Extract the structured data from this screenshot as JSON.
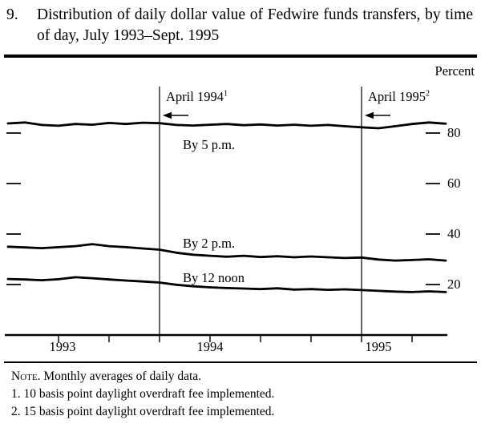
{
  "title": {
    "number": "9.",
    "text": "Distribution of daily dollar value of Fedwire funds transfers, by time of day, July 1993–Sept. 1995"
  },
  "chart_data": {
    "type": "line",
    "title": "Distribution of daily dollar value of Fedwire funds transfers, by time of day, July 1993–Sept. 1995",
    "ylabel": "Percent",
    "ylim": [
      0,
      100
    ],
    "yticks": [
      80,
      60,
      40,
      20
    ],
    "grid": false,
    "legend": "inline-labels",
    "x_frequency": "monthly",
    "x_start": "1993-07",
    "x_end": "1995-09",
    "x_axis_labels": [
      "1993",
      "1994",
      "1995"
    ],
    "x_tick_month_indices": [
      3,
      6,
      9,
      12,
      15,
      18,
      21,
      24
    ],
    "months": [
      "1993-07",
      "1993-08",
      "1993-09",
      "1993-10",
      "1993-11",
      "1993-12",
      "1994-01",
      "1994-02",
      "1994-03",
      "1994-04",
      "1994-05",
      "1994-06",
      "1994-07",
      "1994-08",
      "1994-09",
      "1994-10",
      "1994-11",
      "1994-12",
      "1995-01",
      "1995-02",
      "1995-03",
      "1995-04",
      "1995-05",
      "1995-06",
      "1995-07",
      "1995-08",
      "1995-09"
    ],
    "series": [
      {
        "name": "By 5 p.m.",
        "values": [
          83.8,
          84.2,
          83.2,
          82.9,
          83.6,
          83.3,
          84.0,
          83.6,
          84.1,
          83.9,
          83.2,
          83.0,
          83.3,
          83.6,
          83.1,
          83.4,
          83.0,
          83.3,
          82.9,
          83.2,
          82.7,
          82.3,
          81.9,
          82.7,
          83.6,
          84.2,
          83.7
        ]
      },
      {
        "name": "By 2 p.m.",
        "values": [
          35.0,
          34.7,
          34.4,
          34.8,
          35.2,
          36.0,
          35.2,
          34.8,
          34.3,
          33.8,
          32.6,
          31.8,
          31.4,
          31.0,
          31.4,
          30.9,
          31.2,
          30.8,
          31.1,
          30.8,
          30.5,
          30.7,
          29.9,
          29.5,
          29.7,
          30.0,
          29.5
        ]
      },
      {
        "name": "By 12 noon",
        "values": [
          22.2,
          22.0,
          21.7,
          22.1,
          22.9,
          22.5,
          22.0,
          21.6,
          21.2,
          20.8,
          19.9,
          19.3,
          18.9,
          18.6,
          18.4,
          18.2,
          18.5,
          18.0,
          18.2,
          17.9,
          18.1,
          17.8,
          17.5,
          17.2,
          17.0,
          17.3,
          17.0
        ]
      }
    ],
    "vlines": [
      {
        "label": "April 1994",
        "sup": "1",
        "month": "1994-04",
        "month_index": 9
      },
      {
        "label": "April 1995",
        "sup": "2",
        "month": "1995-04",
        "month_index": 21
      }
    ]
  },
  "notes": [
    {
      "label": "Note.",
      "text": " Monthly averages of daily data."
    },
    {
      "label": "1.",
      "text": " 10 basis point daylight overdraft fee implemented."
    },
    {
      "label": "2.",
      "text": " 15 basis point daylight overdraft fee implemented."
    }
  ]
}
